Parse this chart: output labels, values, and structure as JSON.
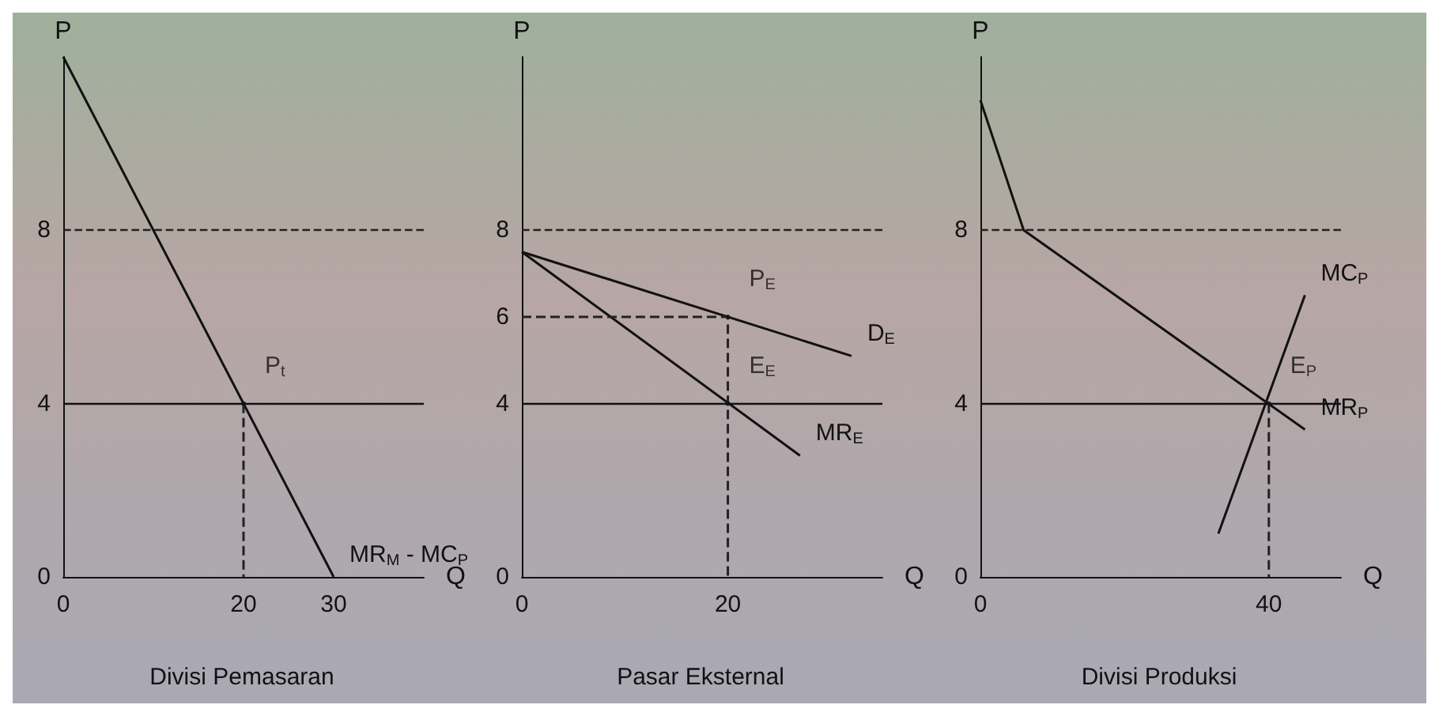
{
  "chart_data": [
    {
      "type": "line",
      "title": "Divisi Pemasaran",
      "xlabel": "Q",
      "ylabel": "P",
      "xlim": [
        0,
        40
      ],
      "xticks": [
        0,
        20,
        30
      ],
      "ylim": [
        0,
        12
      ],
      "yticks": [
        0,
        4,
        8
      ],
      "grid": false,
      "marker": "none",
      "series": [
        {
          "name": "MR$_{M}$ - MC$_{P}$",
          "color": "#111111",
          "x": [
            0,
            30
          ],
          "values": [
            12,
            0
          ]
        },
        {
          "color": "#222222",
          "line_style": "dashed",
          "x": [
            20,
            20
          ],
          "values": [
            4,
            0
          ]
        },
        {
          "type": "scatter",
          "name": "P$_{t}$",
          "color": "#111111",
          "x": [
            20
          ],
          "values": [
            4
          ]
        }
      ],
      "ref_lines": [
        {
          "axis": "y",
          "value": 8,
          "color": "#222222",
          "line_style": "dashed"
        },
        {
          "axis": "y",
          "value": 4,
          "color": "#111111",
          "line_style": "solid"
        }
      ]
    },
    {
      "type": "line",
      "title": "Pasar Eksternal",
      "xlabel": "Q",
      "ylabel": "P",
      "xlim": [
        0,
        35
      ],
      "xticks": [
        0,
        20
      ],
      "ylim": [
        0,
        12
      ],
      "yticks": [
        0,
        4,
        6,
        8
      ],
      "grid": false,
      "marker": "none",
      "series": [
        {
          "name": "D$_{E}$",
          "color": "#111111",
          "x": [
            0,
            32
          ],
          "values": [
            7.5,
            5.1
          ]
        },
        {
          "name": "MR$_{E}$",
          "color": "#111111",
          "x": [
            0,
            27
          ],
          "values": [
            7.5,
            2.8
          ]
        },
        {
          "color": "#222222",
          "line_style": "dashed",
          "x": [
            0,
            20,
            20
          ],
          "values": [
            6,
            6,
            0
          ]
        },
        {
          "type": "scatter",
          "name": "P$_{E}$",
          "color": "#111111",
          "x": [
            20
          ],
          "values": [
            6
          ]
        },
        {
          "type": "scatter",
          "name": "E$_{E}$",
          "color": "#111111",
          "x": [
            20
          ],
          "values": [
            4
          ]
        }
      ],
      "ref_lines": [
        {
          "axis": "y",
          "value": 8,
          "color": "#222222",
          "line_style": "dashed"
        },
        {
          "axis": "y",
          "value": 4,
          "color": "#111111",
          "line_style": "solid"
        }
      ]
    },
    {
      "type": "line",
      "title": "Divisi Produksi",
      "xlabel": "Q",
      "ylabel": "P",
      "xlim": [
        0,
        50
      ],
      "xticks": [
        0,
        40
      ],
      "ylim": [
        0,
        12
      ],
      "yticks": [
        0,
        4,
        8
      ],
      "grid": false,
      "marker": "none",
      "series": [
        {
          "name": "MR$_{P}$",
          "color": "#111111",
          "x": [
            0,
            6,
            45
          ],
          "values": [
            11,
            8,
            3.4
          ]
        },
        {
          "name": "MC$_{P}$",
          "color": "#111111",
          "x": [
            33,
            45
          ],
          "values": [
            1,
            6.5
          ]
        },
        {
          "color": "#222222",
          "line_style": "dashed",
          "x": [
            40,
            40
          ],
          "values": [
            4,
            0
          ]
        },
        {
          "type": "scatter",
          "name": "E$_{P}$",
          "color": "#111111",
          "x": [
            40
          ],
          "values": [
            4
          ]
        }
      ],
      "ref_lines": [
        {
          "axis": "y",
          "value": 8,
          "color": "#222222",
          "line_style": "dashed"
        },
        {
          "axis": "y",
          "value": 4,
          "color": "#111111",
          "line_style": "solid"
        }
      ]
    }
  ]
}
